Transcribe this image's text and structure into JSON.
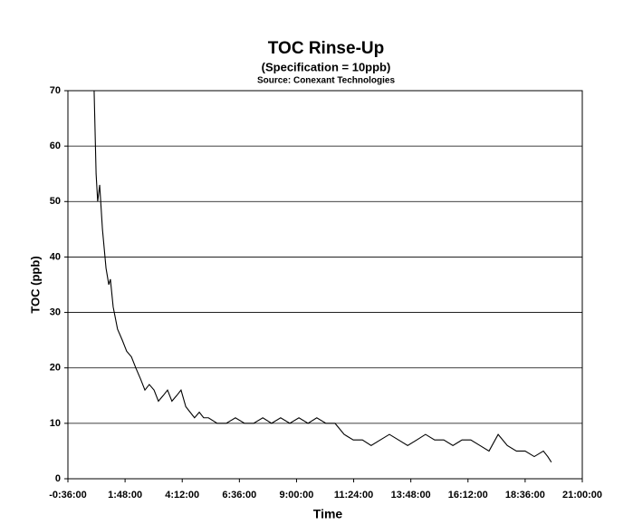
{
  "chart_data": {
    "type": "line",
    "title": "TOC Rinse-Up",
    "subtitle": "(Specification = 10ppb)",
    "source": "Source: Conexant Technologies",
    "x_label": "Time",
    "y_label": "TOC (ppb)",
    "x": [
      30,
      35,
      39,
      44,
      51,
      60,
      67,
      71,
      78,
      89,
      101,
      112,
      124,
      135,
      147,
      158,
      169,
      181,
      192,
      204,
      215,
      226,
      238,
      249,
      261,
      272,
      283,
      295,
      306,
      318,
      340,
      363,
      386,
      409,
      432,
      455,
      477,
      500,
      523,
      546,
      569,
      591,
      614,
      637,
      660,
      683,
      706,
      728,
      751,
      774,
      797,
      820,
      843,
      865,
      888,
      911,
      934,
      957,
      979,
      1002,
      1025,
      1048,
      1071,
      1094,
      1116,
      1139,
      1162,
      1173,
      1182
    ],
    "series": [
      {
        "name": "TOC",
        "color": "#000000",
        "values": [
          70,
          55,
          50,
          53,
          45,
          38,
          35,
          36,
          31,
          27,
          25,
          23,
          22,
          20,
          18,
          16,
          17,
          16,
          14,
          15,
          16,
          14,
          15,
          16,
          13,
          12,
          11,
          12,
          11,
          11,
          10,
          10,
          11,
          10,
          10,
          11,
          10,
          11,
          10,
          11,
          10,
          11,
          10,
          10,
          8,
          7,
          7,
          6,
          7,
          8,
          7,
          6,
          7,
          8,
          7,
          7,
          6,
          7,
          7,
          6,
          5,
          8,
          6,
          5,
          5,
          4,
          5,
          4,
          3
        ]
      }
    ],
    "xlim": [
      -36,
      1260
    ],
    "xticks": [
      {
        "value": -36,
        "label": "-0:36:00"
      },
      {
        "value": 108,
        "label": "1:48:00"
      },
      {
        "value": 252,
        "label": "4:12:00"
      },
      {
        "value": 396,
        "label": "6:36:00"
      },
      {
        "value": 540,
        "label": "9:00:00"
      },
      {
        "value": 684,
        "label": "11:24:00"
      },
      {
        "value": 828,
        "label": "13:48:00"
      },
      {
        "value": 972,
        "label": "16:12:00"
      },
      {
        "value": 1116,
        "label": "18:36:00"
      },
      {
        "value": 1260,
        "label": "21:00:00"
      }
    ],
    "ylim": [
      0,
      70
    ],
    "yticks": [
      0,
      10,
      20,
      30,
      40,
      50,
      60,
      70
    ],
    "grid": true
  }
}
